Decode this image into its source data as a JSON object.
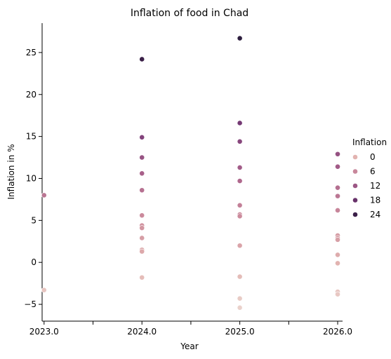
{
  "chart_data": {
    "type": "scatter",
    "title": "Inflation of food in Chad",
    "xlabel": "Year",
    "ylabel": "Inflation in %",
    "xlim": [
      2022.98,
      2026.05
    ],
    "ylim": [
      -7,
      28.5
    ],
    "x_ticks": [
      2023.0,
      2023.5,
      2024.0,
      2024.5,
      2025.0,
      2025.5,
      2026.0
    ],
    "x_tick_labels": [
      "2023.0",
      "",
      "2024.0",
      "",
      "2025.0",
      "",
      "2026.0"
    ],
    "y_ticks": [
      -5,
      0,
      5,
      10,
      15,
      20,
      25
    ],
    "y_tick_labels": [
      "−5",
      "0",
      "5",
      "10",
      "15",
      "20",
      "25"
    ],
    "grid": false,
    "legend": {
      "title": "Inflation",
      "placement": "right",
      "entries": [
        {
          "label": "0",
          "value": 0
        },
        {
          "label": "6",
          "value": 6
        },
        {
          "label": "12",
          "value": 12
        },
        {
          "label": "18",
          "value": 18
        },
        {
          "label": "24",
          "value": 24
        }
      ]
    },
    "color_scale": {
      "domain": [
        -5.4,
        26.7
      ],
      "stops": [
        "#ead1cb",
        "#e2b3b0",
        "#cd8d9d",
        "#a8608a",
        "#7a3c78",
        "#4b2253",
        "#2d1e3e"
      ]
    },
    "points": [
      {
        "x": 2023.0,
        "y": 8.0
      },
      {
        "x": 2023.0,
        "y": -3.3
      },
      {
        "x": 2024.0,
        "y": 24.2
      },
      {
        "x": 2024.0,
        "y": 14.9
      },
      {
        "x": 2024.0,
        "y": 12.5
      },
      {
        "x": 2024.0,
        "y": 10.6
      },
      {
        "x": 2024.0,
        "y": 8.6
      },
      {
        "x": 2024.0,
        "y": 5.6
      },
      {
        "x": 2024.0,
        "y": 4.4
      },
      {
        "x": 2024.0,
        "y": 4.1
      },
      {
        "x": 2024.0,
        "y": 2.9
      },
      {
        "x": 2024.0,
        "y": 1.5
      },
      {
        "x": 2024.0,
        "y": 1.3
      },
      {
        "x": 2024.0,
        "y": -1.8
      },
      {
        "x": 2025.0,
        "y": 26.7
      },
      {
        "x": 2025.0,
        "y": 16.6
      },
      {
        "x": 2025.0,
        "y": 14.4
      },
      {
        "x": 2025.0,
        "y": 11.3
      },
      {
        "x": 2025.0,
        "y": 9.7
      },
      {
        "x": 2025.0,
        "y": 6.8
      },
      {
        "x": 2025.0,
        "y": 5.7
      },
      {
        "x": 2025.0,
        "y": 5.5
      },
      {
        "x": 2025.0,
        "y": 2.0
      },
      {
        "x": 2025.0,
        "y": -1.7
      },
      {
        "x": 2025.0,
        "y": -4.3
      },
      {
        "x": 2025.0,
        "y": -5.4
      },
      {
        "x": 2026.0,
        "y": 12.9
      },
      {
        "x": 2026.0,
        "y": 11.4
      },
      {
        "x": 2026.0,
        "y": 8.9
      },
      {
        "x": 2026.0,
        "y": 7.9
      },
      {
        "x": 2026.0,
        "y": 6.2
      },
      {
        "x": 2026.0,
        "y": 3.2
      },
      {
        "x": 2026.0,
        "y": 2.9
      },
      {
        "x": 2026.0,
        "y": 2.7
      },
      {
        "x": 2026.0,
        "y": 0.9
      },
      {
        "x": 2026.0,
        "y": -0.1
      },
      {
        "x": 2026.0,
        "y": -3.5
      },
      {
        "x": 2026.0,
        "y": -3.8
      }
    ]
  }
}
